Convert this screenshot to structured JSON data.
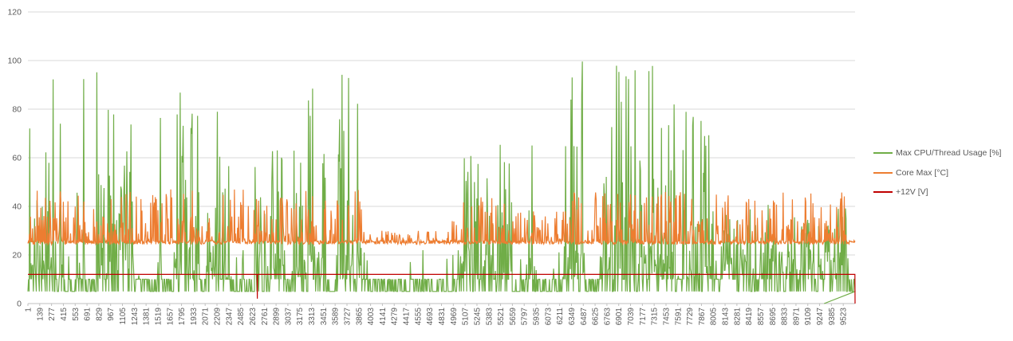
{
  "chart_data": {
    "type": "line",
    "title": "",
    "xlabel": "",
    "ylabel": "",
    "ylim": [
      0,
      120
    ],
    "y_ticks": [
      0,
      20,
      40,
      60,
      80,
      100,
      120
    ],
    "grid": "horizontal",
    "legend_position": "right",
    "x_range": [
      1,
      9661
    ],
    "x_tick_step": 138,
    "x_tick_labels": [
      "1",
      "139",
      "277",
      "415",
      "553",
      "691",
      "829",
      "967",
      "1105",
      "1243",
      "1381",
      "1519",
      "1657",
      "1795",
      "1933",
      "2071",
      "2209",
      "2347",
      "2485",
      "2623",
      "2761",
      "2899",
      "3037",
      "3175",
      "3313",
      "3451",
      "3589",
      "3727",
      "3865",
      "4003",
      "4141",
      "4279",
      "4417",
      "4555",
      "4693",
      "4831",
      "4969",
      "5107",
      "5245",
      "5383",
      "5521",
      "5659",
      "5797",
      "5935",
      "6073",
      "6211",
      "6349",
      "6487",
      "6625",
      "6763",
      "6901",
      "7039",
      "7177",
      "7315",
      "7453",
      "7591",
      "7729",
      "7867",
      "8005",
      "8143",
      "8281",
      "8419",
      "8557",
      "8695",
      "8833",
      "8971",
      "9109",
      "9247",
      "9385",
      "9523"
    ],
    "series": [
      {
        "name": "Max CPU/Thread Usage [%]",
        "color": "#70ad47",
        "baseline_range": [
          5,
          10
        ],
        "bursts": [
          {
            "x": [
              1,
              420
            ],
            "max": 100
          },
          {
            "x": [
              560,
              700
            ],
            "max": 95
          },
          {
            "x": [
              800,
              1250
            ],
            "max": 100
          },
          {
            "x": [
              1500,
              1560
            ],
            "max": 100
          },
          {
            "x": [
              1700,
              2000
            ],
            "max": 95
          },
          {
            "x": [
              2080,
              2350
            ],
            "max": 85
          },
          {
            "x": [
              2650,
              3000
            ],
            "max": 80
          },
          {
            "x": [
              3100,
              3480
            ],
            "max": 100
          },
          {
            "x": [
              3600,
              3900
            ],
            "max": 95
          },
          {
            "x": [
              5000,
              5650
            ],
            "max": 68
          },
          {
            "x": [
              5850,
              5950
            ],
            "max": 70
          },
          {
            "x": [
              6250,
              6500
            ],
            "max": 100
          },
          {
            "x": [
              6700,
              7150
            ],
            "max": 100
          },
          {
            "x": [
              7150,
              7600
            ],
            "max": 100
          },
          {
            "x": [
              7650,
              8050
            ],
            "max": 85
          },
          {
            "x": [
              8100,
              9600
            ],
            "max": 45
          }
        ],
        "notable_points": [
          {
            "x": 9300,
            "y": 0
          }
        ]
      },
      {
        "name": "Core Max [°C]",
        "color": "#ed7d31",
        "baseline": 25,
        "bursts": [
          {
            "x": [
              1,
              3900
            ],
            "max": 47
          },
          {
            "x": [
              3900,
              4950
            ],
            "max": 30
          },
          {
            "x": [
              4950,
              5650
            ],
            "max": 44
          },
          {
            "x": [
              5650,
              6300
            ],
            "max": 38
          },
          {
            "x": [
              6300,
              9600
            ],
            "max": 46
          }
        ]
      },
      {
        "name": "+12V [V]",
        "color": "#c00000",
        "baseline": 12,
        "notable_points": [
          {
            "x": 2680,
            "y": 2
          },
          {
            "x": 9661,
            "y": 0
          }
        ]
      }
    ]
  }
}
